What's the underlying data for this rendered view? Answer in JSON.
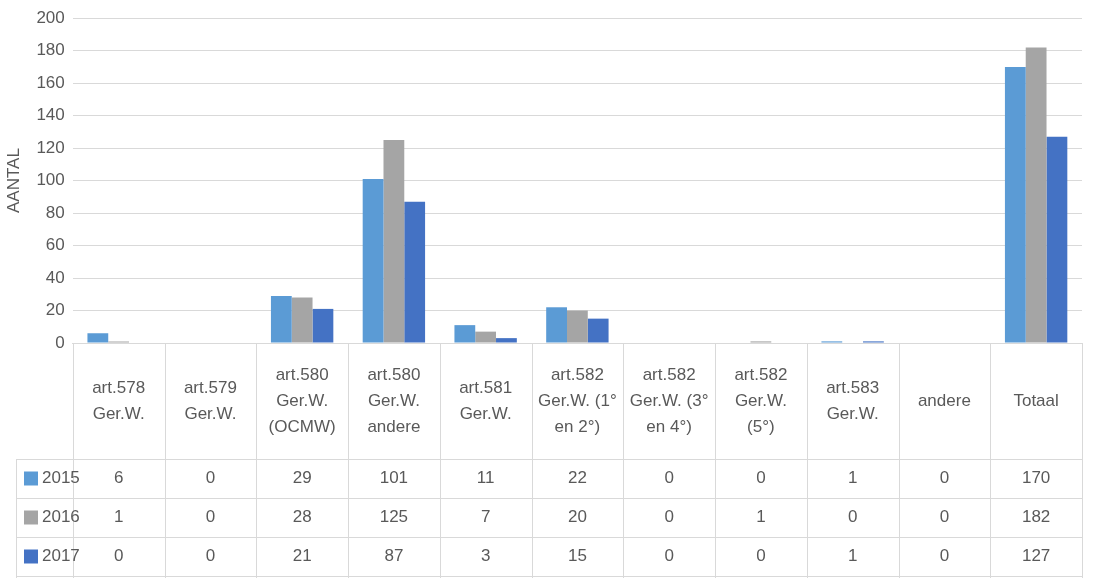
{
  "chart_data": {
    "type": "bar",
    "ylabel": "AANTAL",
    "categories": [
      "art.578 Ger.W.",
      "art.579 Ger.W.",
      "art.580 Ger.W. (OCMW)",
      "art.580 Ger.W. andere",
      "art.581 Ger.W.",
      "art.582 Ger.W. (1° en 2°)",
      "art.582 Ger.W. (3° en 4°)",
      "art.582 Ger.W. (5°)",
      "art.583 Ger.W.",
      "andere",
      "Totaal"
    ],
    "series": [
      {
        "name": "2015",
        "color": "#5b9bd5",
        "values": [
          6,
          0,
          29,
          101,
          11,
          22,
          0,
          0,
          1,
          0,
          170
        ]
      },
      {
        "name": "2016",
        "color": "#a5a5a5",
        "values": [
          1,
          0,
          28,
          125,
          7,
          20,
          0,
          1,
          0,
          0,
          182
        ]
      },
      {
        "name": "2017",
        "color": "#4472c4",
        "values": [
          0,
          0,
          21,
          87,
          3,
          15,
          0,
          0,
          1,
          0,
          127
        ]
      }
    ],
    "ylim": [
      0,
      200
    ],
    "yticks": [
      0,
      20,
      40,
      60,
      80,
      100,
      120,
      140,
      160,
      180,
      200
    ],
    "grid": "y",
    "legend": "bottom",
    "data_labels": true
  }
}
